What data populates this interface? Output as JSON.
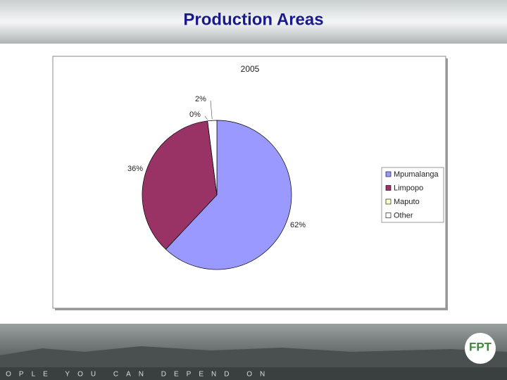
{
  "header": {
    "title": "Production Areas"
  },
  "chart_data": {
    "type": "pie",
    "title": "2005",
    "categories": [
      "Mpumalanga",
      "Limpopo",
      "Maputo",
      "Other"
    ],
    "values": [
      62,
      36,
      0,
      2
    ],
    "value_labels": [
      "62%",
      "36%",
      "0%",
      "2%"
    ],
    "colors": [
      "#9999ff",
      "#993366",
      "#ffffcc",
      "#ffffff"
    ],
    "legend": "right"
  },
  "footer": {
    "tagline": "PEOPLE YOU CAN DEPEND ON",
    "logo": "FPT"
  }
}
